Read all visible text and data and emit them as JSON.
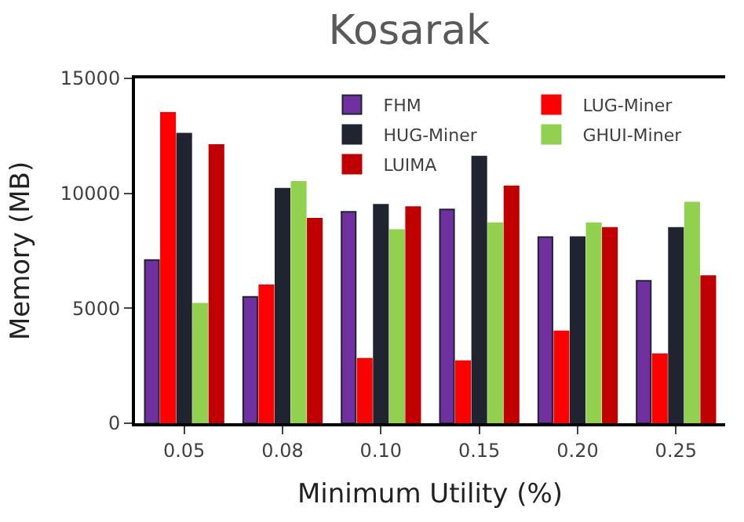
{
  "chart_data": {
    "type": "bar",
    "title": "Kosarak",
    "xlabel": "Minimum Utility (%)",
    "ylabel": "Memory (MB)",
    "categories": [
      "0.05",
      "0.08",
      "0.10",
      "0.15",
      "0.20",
      "0.25"
    ],
    "series": [
      {
        "name": "FHM",
        "color": "#7030a0",
        "values": [
          7100,
          5500,
          9200,
          9300,
          8100,
          6200
        ]
      },
      {
        "name": "LUG-Miner",
        "color": "#ff0000",
        "values": [
          13500,
          6000,
          2800,
          2700,
          4000,
          3000
        ]
      },
      {
        "name": "HUG-Miner",
        "color": "#1f2430",
        "values": [
          12600,
          10200,
          9500,
          11600,
          8100,
          8500
        ]
      },
      {
        "name": "GHUI-Miner",
        "color": "#92d050",
        "values": [
          5200,
          10500,
          8400,
          8700,
          8700,
          9600
        ]
      },
      {
        "name": "LUIMA",
        "color": "#c00000",
        "values": [
          12100,
          8900,
          9400,
          10300,
          8500,
          6400
        ]
      }
    ],
    "ylim": [
      0,
      15000
    ],
    "yticks": [
      0,
      5000,
      10000,
      15000
    ],
    "legend": "top right"
  }
}
